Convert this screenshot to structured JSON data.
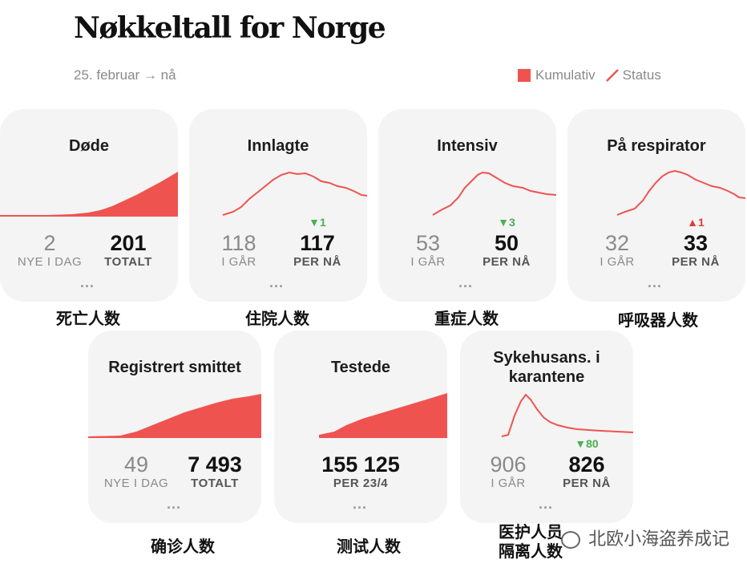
{
  "page": {
    "title": "Nøkkeltall for Norge",
    "period": "25. februar → nå",
    "legend_cumulative": "Kumulativ",
    "legend_status": "Status",
    "accent_color": "#ef5350",
    "down_color": "#4caf50"
  },
  "cards": [
    {
      "title": "Døde",
      "type": "area",
      "left_value": "2",
      "left_label": "NYE I DAG",
      "right_value": "201",
      "right_label": "TOTALT",
      "change": "",
      "change_dir": "",
      "more": "...",
      "caption": "死亡人数"
    },
    {
      "title": "Innlagte",
      "type": "line",
      "left_value": "118",
      "left_label": "I GÅR",
      "right_value": "117",
      "right_label": "PER NÅ",
      "change": "1",
      "change_dir": "down",
      "more": "...",
      "caption": "住院人数"
    },
    {
      "title": "Intensiv",
      "type": "line",
      "left_value": "53",
      "left_label": "I GÅR",
      "right_value": "50",
      "right_label": "PER NÅ",
      "change": "3",
      "change_dir": "down",
      "more": "...",
      "caption": "重症人数"
    },
    {
      "title": "På respirator",
      "type": "line",
      "left_value": "32",
      "left_label": "I GÅR",
      "right_value": "33",
      "right_label": "PER NÅ",
      "change": "1",
      "change_dir": "up",
      "more": "...",
      "caption": "呼吸器人数"
    },
    {
      "title": "Registrert smittet",
      "type": "area",
      "left_value": "49",
      "left_label": "NYE I DAG",
      "right_value": "7 493",
      "right_label": "TOTALT",
      "change": "",
      "change_dir": "",
      "more": "...",
      "caption": "确诊人数"
    },
    {
      "title": "Testede",
      "type": "area",
      "left_value": "",
      "left_label": "",
      "right_value": "155 125",
      "right_label": "PER 23/4",
      "change": "",
      "change_dir": "",
      "more": "...",
      "caption": "测试人数"
    },
    {
      "title": "Sykehusans. i karantene",
      "type": "line",
      "left_value": "906",
      "left_label": "I GÅR",
      "right_value": "826",
      "right_label": "PER NÅ",
      "change": "80",
      "change_dir": "down",
      "more": "...",
      "caption": "医护人员\n隔离人数"
    }
  ],
  "watermark": "北欧小海盗养成记",
  "watermark_icon": "wechat-icon"
}
